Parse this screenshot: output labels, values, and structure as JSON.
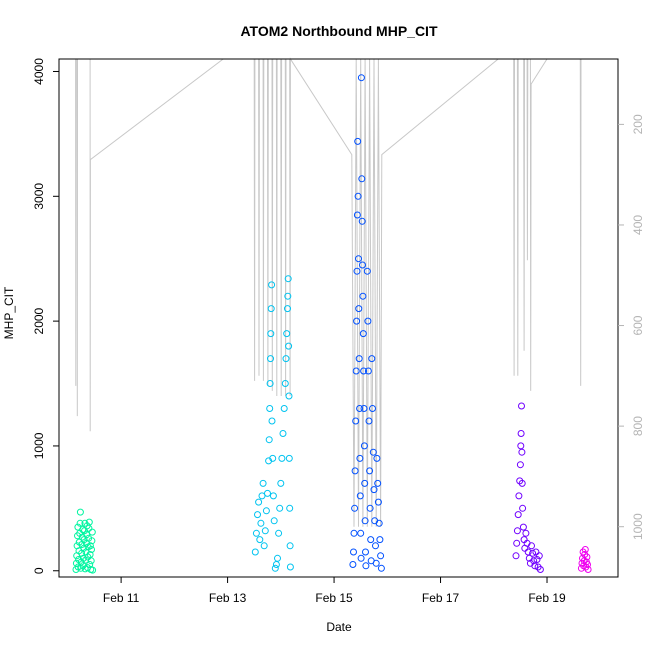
{
  "chart_data": {
    "type": "scatter",
    "title": "ATOM2 Northbound MHP_CIT",
    "xlabel": "Date",
    "ylabel": "MHP_CIT",
    "x_range": [
      "2013-02-09T20:00",
      "2013-02-20T08:00"
    ],
    "ylim": [
      -50,
      4100
    ],
    "xticks": [
      {
        "date": "2013-02-11",
        "label": "Feb 11"
      },
      {
        "date": "2013-02-13",
        "label": "Feb 13"
      },
      {
        "date": "2013-02-15",
        "label": "Feb 15"
      },
      {
        "date": "2013-02-17",
        "label": "Feb 17"
      },
      {
        "date": "2013-02-19",
        "label": "Feb 19"
      }
    ],
    "yticks": [
      0,
      1000,
      2000,
      3000,
      4000
    ],
    "right_axis": {
      "reversed": true,
      "range": [
        70,
        1100
      ],
      "ticks": [
        200,
        400,
        600,
        800,
        1000
      ],
      "color": "#b4b4b4"
    },
    "point_style": "open-circle",
    "series": [
      {
        "color": "#00f5a0",
        "points": [
          [
            "2013-02-10T03:40",
            10
          ],
          [
            "2013-02-10T03:50",
            60
          ],
          [
            "2013-02-10T04:00",
            120
          ],
          [
            "2013-02-10T04:10",
            200
          ],
          [
            "2013-02-10T04:20",
            280
          ],
          [
            "2013-02-10T04:30",
            350
          ],
          [
            "2013-02-10T04:40",
            30
          ],
          [
            "2013-02-10T04:50",
            90
          ],
          [
            "2013-02-10T05:00",
            160
          ],
          [
            "2013-02-10T05:10",
            230
          ],
          [
            "2013-02-10T05:20",
            300
          ],
          [
            "2013-02-10T05:30",
            380
          ],
          [
            "2013-02-10T05:40",
            470
          ],
          [
            "2013-02-10T05:50",
            20
          ],
          [
            "2013-02-10T06:00",
            70
          ],
          [
            "2013-02-10T06:10",
            140
          ],
          [
            "2013-02-10T06:20",
            210
          ],
          [
            "2013-02-10T06:30",
            270
          ],
          [
            "2013-02-10T06:40",
            330
          ],
          [
            "2013-02-10T06:50",
            40
          ],
          [
            "2013-02-10T07:00",
            100
          ],
          [
            "2013-02-10T07:10",
            180
          ],
          [
            "2013-02-10T07:20",
            250
          ],
          [
            "2013-02-10T07:30",
            320
          ],
          [
            "2013-02-10T07:40",
            380
          ],
          [
            "2013-02-10T07:50",
            15
          ],
          [
            "2013-02-10T08:00",
            85
          ],
          [
            "2013-02-10T08:10",
            150
          ],
          [
            "2013-02-10T08:20",
            220
          ],
          [
            "2013-02-10T08:30",
            290
          ],
          [
            "2013-02-10T08:40",
            360
          ],
          [
            "2013-02-10T08:50",
            25
          ],
          [
            "2013-02-10T09:00",
            110
          ],
          [
            "2013-02-10T09:10",
            190
          ],
          [
            "2013-02-10T09:20",
            260
          ],
          [
            "2013-02-10T09:30",
            340
          ],
          [
            "2013-02-10T09:40",
            390
          ],
          [
            "2013-02-10T09:50",
            50
          ],
          [
            "2013-02-10T10:00",
            130
          ],
          [
            "2013-02-10T10:10",
            200
          ],
          [
            "2013-02-10T10:20",
            10
          ],
          [
            "2013-02-10T10:30",
            80
          ],
          [
            "2013-02-10T10:40",
            170
          ],
          [
            "2013-02-10T10:50",
            240
          ],
          [
            "2013-02-10T11:00",
            310
          ],
          [
            "2013-02-10T11:10",
            5
          ]
        ]
      },
      {
        "color": "#00c3f0",
        "points": [
          [
            "2013-02-13T12:30",
            150
          ],
          [
            "2013-02-13T13:00",
            300
          ],
          [
            "2013-02-13T13:30",
            450
          ],
          [
            "2013-02-13T14:00",
            550
          ],
          [
            "2013-02-13T14:30",
            250
          ],
          [
            "2013-02-13T15:00",
            380
          ],
          [
            "2013-02-13T15:30",
            600
          ],
          [
            "2013-02-13T16:00",
            700
          ],
          [
            "2013-02-13T16:30",
            200
          ],
          [
            "2013-02-13T17:00",
            320
          ],
          [
            "2013-02-13T17:30",
            480
          ],
          [
            "2013-02-13T18:00",
            620
          ],
          [
            "2013-02-13T18:30",
            880
          ],
          [
            "2013-02-13T18:45",
            1050
          ],
          [
            "2013-02-13T19:00",
            1300
          ],
          [
            "2013-02-13T19:10",
            1500
          ],
          [
            "2013-02-13T19:20",
            1700
          ],
          [
            "2013-02-13T19:30",
            1900
          ],
          [
            "2013-02-13T19:40",
            2100
          ],
          [
            "2013-02-13T19:50",
            2290
          ],
          [
            "2013-02-13T20:00",
            1200
          ],
          [
            "2013-02-13T20:20",
            900
          ],
          [
            "2013-02-13T20:40",
            600
          ],
          [
            "2013-02-13T21:00",
            400
          ],
          [
            "2013-02-13T21:30",
            20
          ],
          [
            "2013-02-13T22:00",
            50
          ],
          [
            "2013-02-13T22:30",
            100
          ],
          [
            "2013-02-13T23:00",
            300
          ],
          [
            "2013-02-13T23:30",
            500
          ],
          [
            "2013-02-14T00:00",
            700
          ],
          [
            "2013-02-14T00:30",
            900
          ],
          [
            "2013-02-14T01:00",
            1100
          ],
          [
            "2013-02-14T01:30",
            1300
          ],
          [
            "2013-02-14T02:00",
            1500
          ],
          [
            "2013-02-14T02:20",
            1700
          ],
          [
            "2013-02-14T02:40",
            1900
          ],
          [
            "2013-02-14T03:00",
            2100
          ],
          [
            "2013-02-14T03:10",
            2200
          ],
          [
            "2013-02-14T03:20",
            2340
          ],
          [
            "2013-02-14T03:30",
            1800
          ],
          [
            "2013-02-14T03:40",
            1400
          ],
          [
            "2013-02-14T03:50",
            900
          ],
          [
            "2013-02-14T04:00",
            500
          ],
          [
            "2013-02-14T04:10",
            200
          ],
          [
            "2013-02-14T04:20",
            30
          ]
        ]
      },
      {
        "color": "#0050ff",
        "points": [
          [
            "2013-02-15T08:30",
            50
          ],
          [
            "2013-02-15T08:45",
            150
          ],
          [
            "2013-02-15T09:00",
            300
          ],
          [
            "2013-02-15T09:15",
            500
          ],
          [
            "2013-02-15T09:30",
            800
          ],
          [
            "2013-02-15T09:45",
            1200
          ],
          [
            "2013-02-15T10:00",
            1600
          ],
          [
            "2013-02-15T10:10",
            2000
          ],
          [
            "2013-02-15T10:20",
            2400
          ],
          [
            "2013-02-15T10:30",
            2850
          ],
          [
            "2013-02-15T10:40",
            3440
          ],
          [
            "2013-02-15T10:50",
            3000
          ],
          [
            "2013-02-15T11:00",
            2500
          ],
          [
            "2013-02-15T11:10",
            2100
          ],
          [
            "2013-02-15T11:20",
            1700
          ],
          [
            "2013-02-15T11:30",
            1300
          ],
          [
            "2013-02-15T11:40",
            900
          ],
          [
            "2013-02-15T11:50",
            600
          ],
          [
            "2013-02-15T12:00",
            300
          ],
          [
            "2013-02-15T12:10",
            100
          ],
          [
            "2013-02-15T12:20",
            3950
          ],
          [
            "2013-02-15T12:30",
            3140
          ],
          [
            "2013-02-15T12:40",
            2800
          ],
          [
            "2013-02-15T12:50",
            2450
          ],
          [
            "2013-02-15T13:00",
            2200
          ],
          [
            "2013-02-15T13:10",
            1900
          ],
          [
            "2013-02-15T13:20",
            1600
          ],
          [
            "2013-02-15T13:30",
            1300
          ],
          [
            "2013-02-15T13:40",
            1000
          ],
          [
            "2013-02-15T13:50",
            700
          ],
          [
            "2013-02-15T14:00",
            400
          ],
          [
            "2013-02-15T14:10",
            150
          ],
          [
            "2013-02-15T14:20",
            40
          ],
          [
            "2013-02-15T15:00",
            2400
          ],
          [
            "2013-02-15T15:15",
            2000
          ],
          [
            "2013-02-15T15:30",
            1600
          ],
          [
            "2013-02-15T15:45",
            1200
          ],
          [
            "2013-02-15T16:00",
            800
          ],
          [
            "2013-02-15T16:15",
            500
          ],
          [
            "2013-02-15T16:30",
            250
          ],
          [
            "2013-02-15T16:45",
            80
          ],
          [
            "2013-02-15T17:00",
            1700
          ],
          [
            "2013-02-15T17:20",
            1300
          ],
          [
            "2013-02-15T17:40",
            950
          ],
          [
            "2013-02-15T18:00",
            650
          ],
          [
            "2013-02-15T18:20",
            400
          ],
          [
            "2013-02-15T18:40",
            200
          ],
          [
            "2013-02-15T19:00",
            60
          ],
          [
            "2013-02-15T19:20",
            900
          ],
          [
            "2013-02-15T19:40",
            700
          ],
          [
            "2013-02-15T20:00",
            550
          ],
          [
            "2013-02-15T20:20",
            380
          ],
          [
            "2013-02-15T20:40",
            250
          ],
          [
            "2013-02-15T21:00",
            120
          ],
          [
            "2013-02-15T21:20",
            20
          ]
        ]
      },
      {
        "color": "#7000ff",
        "points": [
          [
            "2013-02-18T10:00",
            120
          ],
          [
            "2013-02-18T10:20",
            220
          ],
          [
            "2013-02-18T10:40",
            320
          ],
          [
            "2013-02-18T11:00",
            450
          ],
          [
            "2013-02-18T11:20",
            600
          ],
          [
            "2013-02-18T11:40",
            720
          ],
          [
            "2013-02-18T12:00",
            850
          ],
          [
            "2013-02-18T12:10",
            1000
          ],
          [
            "2013-02-18T12:20",
            1100
          ],
          [
            "2013-02-18T12:30",
            1320
          ],
          [
            "2013-02-18T12:40",
            950
          ],
          [
            "2013-02-18T12:50",
            700
          ],
          [
            "2013-02-18T13:00",
            500
          ],
          [
            "2013-02-18T13:20",
            350
          ],
          [
            "2013-02-18T13:40",
            250
          ],
          [
            "2013-02-18T14:00",
            180
          ],
          [
            "2013-02-18T14:30",
            300
          ],
          [
            "2013-02-18T15:00",
            220
          ],
          [
            "2013-02-18T15:30",
            150
          ],
          [
            "2013-02-18T16:00",
            100
          ],
          [
            "2013-02-18T16:30",
            60
          ],
          [
            "2013-02-18T17:00",
            200
          ],
          [
            "2013-02-18T17:30",
            140
          ],
          [
            "2013-02-18T18:00",
            80
          ],
          [
            "2013-02-18T18:30",
            40
          ],
          [
            "2013-02-18T19:00",
            150
          ],
          [
            "2013-02-18T19:30",
            90
          ],
          [
            "2013-02-18T20:00",
            30
          ],
          [
            "2013-02-18T20:30",
            120
          ],
          [
            "2013-02-18T21:00",
            10
          ]
        ]
      },
      {
        "color": "#f000f0",
        "points": [
          [
            "2013-02-19T15:30",
            20
          ],
          [
            "2013-02-19T15:45",
            60
          ],
          [
            "2013-02-19T16:00",
            100
          ],
          [
            "2013-02-19T16:15",
            150
          ],
          [
            "2013-02-19T16:30",
            40
          ],
          [
            "2013-02-19T16:45",
            80
          ],
          [
            "2013-02-19T17:00",
            130
          ],
          [
            "2013-02-19T17:15",
            170
          ],
          [
            "2013-02-19T17:30",
            30
          ],
          [
            "2013-02-19T17:45",
            70
          ],
          [
            "2013-02-19T18:00",
            110
          ],
          [
            "2013-02-19T18:15",
            50
          ],
          [
            "2013-02-19T18:30",
            10
          ]
        ]
      }
    ],
    "overlay_line": {
      "axis": "right",
      "color": "#c8c8c8",
      "points": [
        [
          "2013-02-10T03:30",
          70
        ],
        [
          "2013-02-10T03:35",
          720
        ],
        [
          "2013-02-10T03:40",
          70
        ],
        [
          "2013-02-10T04:10",
          70
        ],
        [
          "2013-02-10T04:15",
          780
        ],
        [
          "2013-02-10T04:20",
          70
        ],
        [
          "2013-02-10T10:00",
          70
        ],
        [
          "2013-02-10T10:05",
          810
        ],
        [
          "2013-02-10T10:10",
          270
        ],
        [
          "2013-02-12T22:00",
          70
        ],
        [
          "2013-02-13T12:00",
          70
        ],
        [
          "2013-02-13T12:10",
          710
        ],
        [
          "2013-02-13T12:20",
          70
        ],
        [
          "2013-02-13T14:00",
          70
        ],
        [
          "2013-02-13T14:10",
          700
        ],
        [
          "2013-02-13T14:20",
          70
        ],
        [
          "2013-02-13T16:00",
          70
        ],
        [
          "2013-02-13T16:10",
          710
        ],
        [
          "2013-02-13T16:20",
          70
        ],
        [
          "2013-02-13T18:00",
          70
        ],
        [
          "2013-02-13T18:10",
          720
        ],
        [
          "2013-02-13T18:20",
          70
        ],
        [
          "2013-02-13T20:00",
          70
        ],
        [
          "2013-02-13T20:10",
          730
        ],
        [
          "2013-02-13T20:20",
          70
        ],
        [
          "2013-02-13T22:00",
          70
        ],
        [
          "2013-02-13T22:10",
          740
        ],
        [
          "2013-02-13T22:20",
          70
        ],
        [
          "2013-02-14T00:00",
          70
        ],
        [
          "2013-02-14T00:10",
          740
        ],
        [
          "2013-02-14T00:20",
          70
        ],
        [
          "2013-02-14T02:00",
          70
        ],
        [
          "2013-02-14T02:10",
          740
        ],
        [
          "2013-02-14T02:20",
          70
        ],
        [
          "2013-02-14T04:00",
          70
        ],
        [
          "2013-02-14T04:10",
          740
        ],
        [
          "2013-02-14T04:20",
          70
        ],
        [
          "2013-02-15T08:00",
          260
        ],
        [
          "2013-02-15T09:00",
          1000
        ],
        [
          "2013-02-15T10:00",
          70
        ],
        [
          "2013-02-15T11:00",
          1000
        ],
        [
          "2013-02-15T12:00",
          70
        ],
        [
          "2013-02-15T13:00",
          1000
        ],
        [
          "2013-02-15T14:00",
          70
        ],
        [
          "2013-02-15T15:00",
          1000
        ],
        [
          "2013-02-15T16:00",
          70
        ],
        [
          "2013-02-15T17:00",
          1000
        ],
        [
          "2013-02-15T18:00",
          70
        ],
        [
          "2013-02-15T19:00",
          1000
        ],
        [
          "2013-02-15T20:00",
          70
        ],
        [
          "2013-02-15T21:00",
          1000
        ],
        [
          "2013-02-15T21:30",
          260
        ],
        [
          "2013-02-18T02:00",
          70
        ],
        [
          "2013-02-18T09:00",
          70
        ],
        [
          "2013-02-18T09:10",
          700
        ],
        [
          "2013-02-18T09:20",
          70
        ],
        [
          "2013-02-18T10:40",
          70
        ],
        [
          "2013-02-18T10:50",
          700
        ],
        [
          "2013-02-18T11:00",
          70
        ],
        [
          "2013-02-18T13:30",
          70
        ],
        [
          "2013-02-18T13:40",
          650
        ],
        [
          "2013-02-18T13:50",
          70
        ],
        [
          "2013-02-18T15:00",
          70
        ],
        [
          "2013-02-18T15:10",
          470
        ],
        [
          "2013-02-18T15:20",
          70
        ],
        [
          "2013-02-18T16:30",
          70
        ],
        [
          "2013-02-18T16:40",
          730
        ],
        [
          "2013-02-18T16:50",
          120
        ],
        [
          "2013-02-19T00:00",
          70
        ],
        [
          "2013-02-19T15:00",
          70
        ],
        [
          "2013-02-19T15:10",
          720
        ],
        [
          "2013-02-19T15:20",
          70
        ]
      ]
    }
  }
}
